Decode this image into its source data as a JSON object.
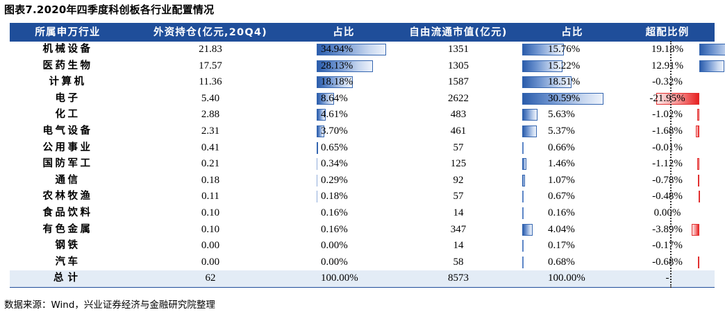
{
  "title": "图表7.2020年四季度科创板各行业配置情况",
  "source": "数据来源：Wind，兴业证券经济与金融研究院整理",
  "colors": {
    "header_bg": "#1f4e9a",
    "total_bg": "#e3ecf6",
    "bar_blue": "#2a5cab",
    "bar_red": "#e62020"
  },
  "headers": [
    "所属申万行业",
    "外资持仓(亿元,20Q4)",
    "占比",
    "自由流通市值(亿元)",
    "占比",
    "超配比例"
  ],
  "rows": [
    {
      "industry": "机械设备",
      "holding": "21.83",
      "share": "34.94%",
      "share_val": 34.94,
      "mktcap": "1351",
      "mshare": "15.76%",
      "mshare_val": 15.76,
      "over": "19.18%",
      "over_val": 19.18
    },
    {
      "industry": "医药生物",
      "holding": "17.57",
      "share": "28.13%",
      "share_val": 28.13,
      "mktcap": "1305",
      "mshare": "15.22%",
      "mshare_val": 15.22,
      "over": "12.91%",
      "over_val": 12.91
    },
    {
      "industry": "计算机",
      "holding": "11.36",
      "share": "18.18%",
      "share_val": 18.18,
      "mktcap": "1587",
      "mshare": "18.51%",
      "mshare_val": 18.51,
      "over": "-0.32%",
      "over_val": -0.32
    },
    {
      "industry": "电子",
      "holding": "5.40",
      "share": "8.64%",
      "share_val": 8.64,
      "mktcap": "2622",
      "mshare": "30.59%",
      "mshare_val": 30.59,
      "over": "-21.95%",
      "over_val": -21.95
    },
    {
      "industry": "化工",
      "holding": "2.88",
      "share": "4.61%",
      "share_val": 4.61,
      "mktcap": "483",
      "mshare": "5.63%",
      "mshare_val": 5.63,
      "over": "-1.02%",
      "over_val": -1.02
    },
    {
      "industry": "电气设备",
      "holding": "2.31",
      "share": "3.70%",
      "share_val": 3.7,
      "mktcap": "461",
      "mshare": "5.37%",
      "mshare_val": 5.37,
      "over": "-1.68%",
      "over_val": -1.68
    },
    {
      "industry": "公用事业",
      "holding": "0.41",
      "share": "0.65%",
      "share_val": 0.65,
      "mktcap": "57",
      "mshare": "0.66%",
      "mshare_val": 0.66,
      "over": "-0.01%",
      "over_val": -0.01
    },
    {
      "industry": "国防军工",
      "holding": "0.21",
      "share": "0.34%",
      "share_val": 0.34,
      "mktcap": "125",
      "mshare": "1.46%",
      "mshare_val": 1.46,
      "over": "-1.12%",
      "over_val": -1.12
    },
    {
      "industry": "通信",
      "holding": "0.18",
      "share": "0.29%",
      "share_val": 0.29,
      "mktcap": "92",
      "mshare": "1.07%",
      "mshare_val": 1.07,
      "over": "-0.78%",
      "over_val": -0.78
    },
    {
      "industry": "农林牧渔",
      "holding": "0.11",
      "share": "0.18%",
      "share_val": 0.18,
      "mktcap": "57",
      "mshare": "0.67%",
      "mshare_val": 0.67,
      "over": "-0.48%",
      "over_val": -0.48
    },
    {
      "industry": "食品饮料",
      "holding": "0.10",
      "share": "0.16%",
      "share_val": 0.16,
      "mktcap": "14",
      "mshare": "0.16%",
      "mshare_val": 0.16,
      "over": "0.00%",
      "over_val": 0.0
    },
    {
      "industry": "有色金属",
      "holding": "0.10",
      "share": "0.16%",
      "share_val": 0.16,
      "mktcap": "347",
      "mshare": "4.04%",
      "mshare_val": 4.04,
      "over": "-3.89%",
      "over_val": -3.89
    },
    {
      "industry": "钢铁",
      "holding": "0.00",
      "share": "0.00%",
      "share_val": 0.0,
      "mktcap": "14",
      "mshare": "0.17%",
      "mshare_val": 0.17,
      "over": "-0.17%",
      "over_val": -0.17
    },
    {
      "industry": "汽车",
      "holding": "0.00",
      "share": "0.00%",
      "share_val": 0.0,
      "mktcap": "58",
      "mshare": "0.68%",
      "mshare_val": 0.68,
      "over": "-0.68%",
      "over_val": -0.68
    }
  ],
  "total": {
    "label": "总计",
    "holding": "62",
    "share": "100.00%",
    "mktcap": "8573",
    "mshare": "100.00%",
    "over": "-"
  }
}
